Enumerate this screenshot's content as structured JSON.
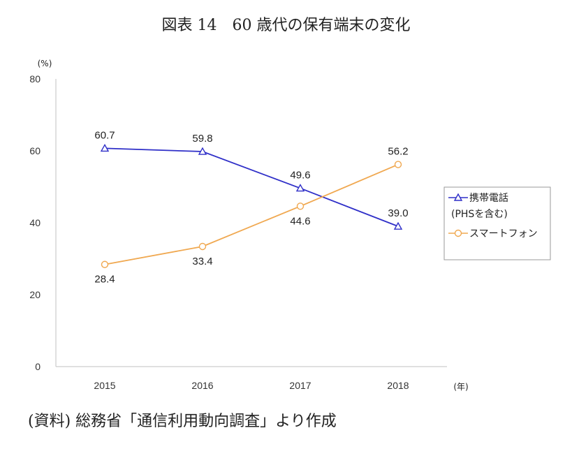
{
  "title": "図表 14　60 歳代の保有端末の変化",
  "source": "(資料) 総務省「通信利用動向調査」より作成",
  "chart_data": {
    "type": "line",
    "x": [
      "2015",
      "2016",
      "2017",
      "2018"
    ],
    "xlabel": "(年)",
    "ylabel": "(%)",
    "ylim": [
      0,
      80
    ],
    "yticks": [
      0,
      20,
      40,
      60,
      80
    ],
    "grid": false,
    "legend_position": "right",
    "series": [
      {
        "name_line1": "携帯電話",
        "name_line2": "(PHSを含む)",
        "values": [
          60.7,
          59.8,
          49.6,
          39.0
        ],
        "labels": [
          "60.7",
          "59.8",
          "49.6",
          "39.0"
        ],
        "color": "#2f2fc8",
        "marker": "triangle"
      },
      {
        "name": "スマートフォン",
        "values": [
          28.4,
          33.4,
          44.6,
          56.2
        ],
        "labels": [
          "28.4",
          "33.4",
          "44.6",
          "56.2"
        ],
        "color": "#f0a850",
        "marker": "circle"
      }
    ]
  }
}
